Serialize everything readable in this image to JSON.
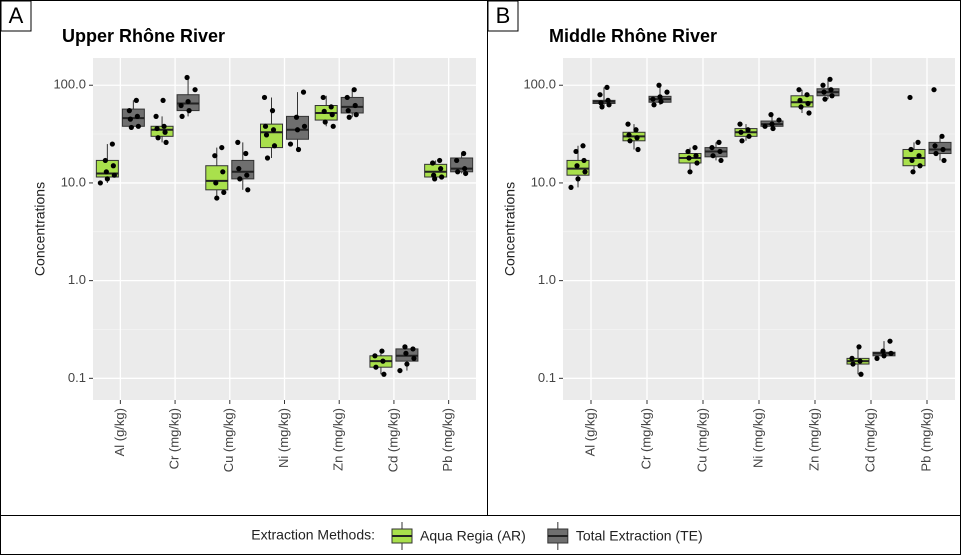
{
  "chart_data": [
    {
      "type": "box",
      "panel_label": "A",
      "title": "Upper Rhône River",
      "ylabel": "Concentrations",
      "legend_title": "Extraction Methods:",
      "log_scale": true,
      "grid": true,
      "ylim": [
        0.06,
        190
      ],
      "yticks": [
        0.1,
        {
          "value": 1,
          "label": "1.0"
        },
        {
          "value": 10,
          "label": "10.0"
        },
        {
          "value": 100,
          "label": "100.0"
        }
      ],
      "categories": [
        "Al (g/kg)",
        "Cr (mg/kg)",
        "Cu (mg/kg)",
        "Ni (mg/kg)",
        "Zn (mg/kg)",
        "Cd (mg/kg)",
        "Pb (mg/kg)"
      ],
      "series": [
        {
          "name": "Aqua Regia (AR)",
          "color": "#a9e04c",
          "stats": [
            [
              10,
              11.5,
              12.5,
              17,
              25
            ],
            [
              26,
              30,
              35,
              38,
              48
            ],
            [
              7,
              8.5,
              10.5,
              15,
              23
            ],
            [
              18,
              23,
              33,
              40,
              75
            ],
            [
              38,
              44,
              52,
              62,
              78
            ],
            [
              0.11,
              0.13,
              0.15,
              0.17,
              0.19
            ],
            [
              11,
              11.5,
              13,
              15.5,
              17
            ]
          ],
          "points": [
            [
              10,
              11,
              12,
              13,
              15,
              17,
              25
            ],
            [
              26,
              29,
              33,
              36,
              38,
              48,
              70
            ],
            [
              7,
              8,
              10,
              13,
              19,
              23
            ],
            [
              18,
              24,
              31,
              35,
              38,
              55,
              75
            ],
            [
              38,
              42,
              50,
              54,
              60,
              75
            ],
            [
              0.11,
              0.13,
              0.15,
              0.17,
              0.19
            ],
            [
              11,
              11.5,
              12,
              14,
              16,
              17
            ]
          ]
        },
        {
          "name": "Total Extraction (TE)",
          "color": "#6f6f6f",
          "stats": [
            [
              37,
              38,
              46,
              57,
              70
            ],
            [
              48,
              55,
              65,
              80,
              120
            ],
            [
              8.5,
              11,
              13,
              17,
              26
            ],
            [
              22,
              28,
              35,
              48,
              85
            ],
            [
              47,
              52,
              60,
              75,
              90
            ],
            [
              0.12,
              0.15,
              0.17,
              0.2,
              0.21
            ],
            [
              12.5,
              13,
              14,
              18,
              20
            ]
          ],
          "points": [
            [
              37,
              38,
              45,
              48,
              55,
              70
            ],
            [
              48,
              55,
              62,
              68,
              90,
              120
            ],
            [
              8.5,
              11,
              12,
              14,
              20,
              26
            ],
            [
              22,
              25,
              35,
              38,
              47,
              85
            ],
            [
              47,
              50,
              55,
              62,
              75,
              90
            ],
            [
              0.12,
              0.14,
              0.16,
              0.18,
              0.2,
              0.21
            ],
            [
              12.5,
              13,
              14,
              17,
              20
            ]
          ]
        }
      ]
    },
    {
      "type": "box",
      "panel_label": "B",
      "title": "Middle Rhône River",
      "ylabel": "Concentrations",
      "log_scale": true,
      "grid": true,
      "ylim": [
        0.06,
        190
      ],
      "yticks": [
        0.1,
        {
          "value": 1,
          "label": "1.0"
        },
        {
          "value": 10,
          "label": "10.0"
        },
        {
          "value": 100,
          "label": "100.0"
        }
      ],
      "categories": [
        "Al (g/kg)",
        "Cr (mg/kg)",
        "Cu (mg/kg)",
        "Ni (mg/kg)",
        "Zn (mg/kg)",
        "Cd (mg/kg)",
        "Pb (mg/kg)"
      ],
      "series": [
        {
          "name": "Aqua Regia (AR)",
          "color": "#a9e04c",
          "stats": [
            [
              9,
              12,
              14,
              17,
              24
            ],
            [
              22,
              27,
              30,
              33,
              40
            ],
            [
              13,
              16,
              18,
              20,
              23
            ],
            [
              27,
              30,
              33,
              36,
              40
            ],
            [
              52,
              60,
              67,
              78,
              90
            ],
            [
              0.11,
              0.14,
              0.15,
              0.16,
              0.21
            ],
            [
              13,
              15,
              18,
              22,
              26
            ]
          ],
          "points": [
            [
              9,
              11,
              13,
              15,
              17,
              21,
              24
            ],
            [
              22,
              27,
              29,
              31,
              35,
              40
            ],
            [
              13,
              16,
              18,
              19,
              21,
              23
            ],
            [
              27,
              30,
              33,
              35,
              40
            ],
            [
              52,
              60,
              65,
              70,
              80,
              90
            ],
            [
              0.11,
              0.14,
              0.15,
              0.16,
              0.21
            ],
            [
              13,
              15,
              17,
              19,
              22,
              26,
              75
            ]
          ]
        },
        {
          "name": "Total Extraction (TE)",
          "color": "#6f6f6f",
          "stats": [
            [
              60,
              65,
              68,
              70,
              95
            ],
            [
              63,
              67,
              72,
              77,
              100
            ],
            [
              17,
              18.5,
              21,
              23,
              26
            ],
            [
              36,
              38,
              40,
              43,
              50
            ],
            [
              72,
              78,
              85,
              92,
              115
            ],
            [
              0.16,
              0.17,
              0.18,
              0.185,
              0.24
            ],
            [
              17,
              20,
              22,
              26,
              30
            ]
          ],
          "points": [
            [
              60,
              63,
              66,
              70,
              80,
              95
            ],
            [
              63,
              68,
              72,
              76,
              85,
              100
            ],
            [
              17,
              19,
              21,
              23,
              26
            ],
            [
              36,
              38,
              40,
              44,
              50
            ],
            [
              72,
              78,
              85,
              90,
              100,
              115
            ],
            [
              0.16,
              0.17,
              0.18,
              0.19,
              0.24
            ],
            [
              17,
              20,
              22,
              24,
              30,
              90
            ]
          ]
        }
      ]
    }
  ]
}
